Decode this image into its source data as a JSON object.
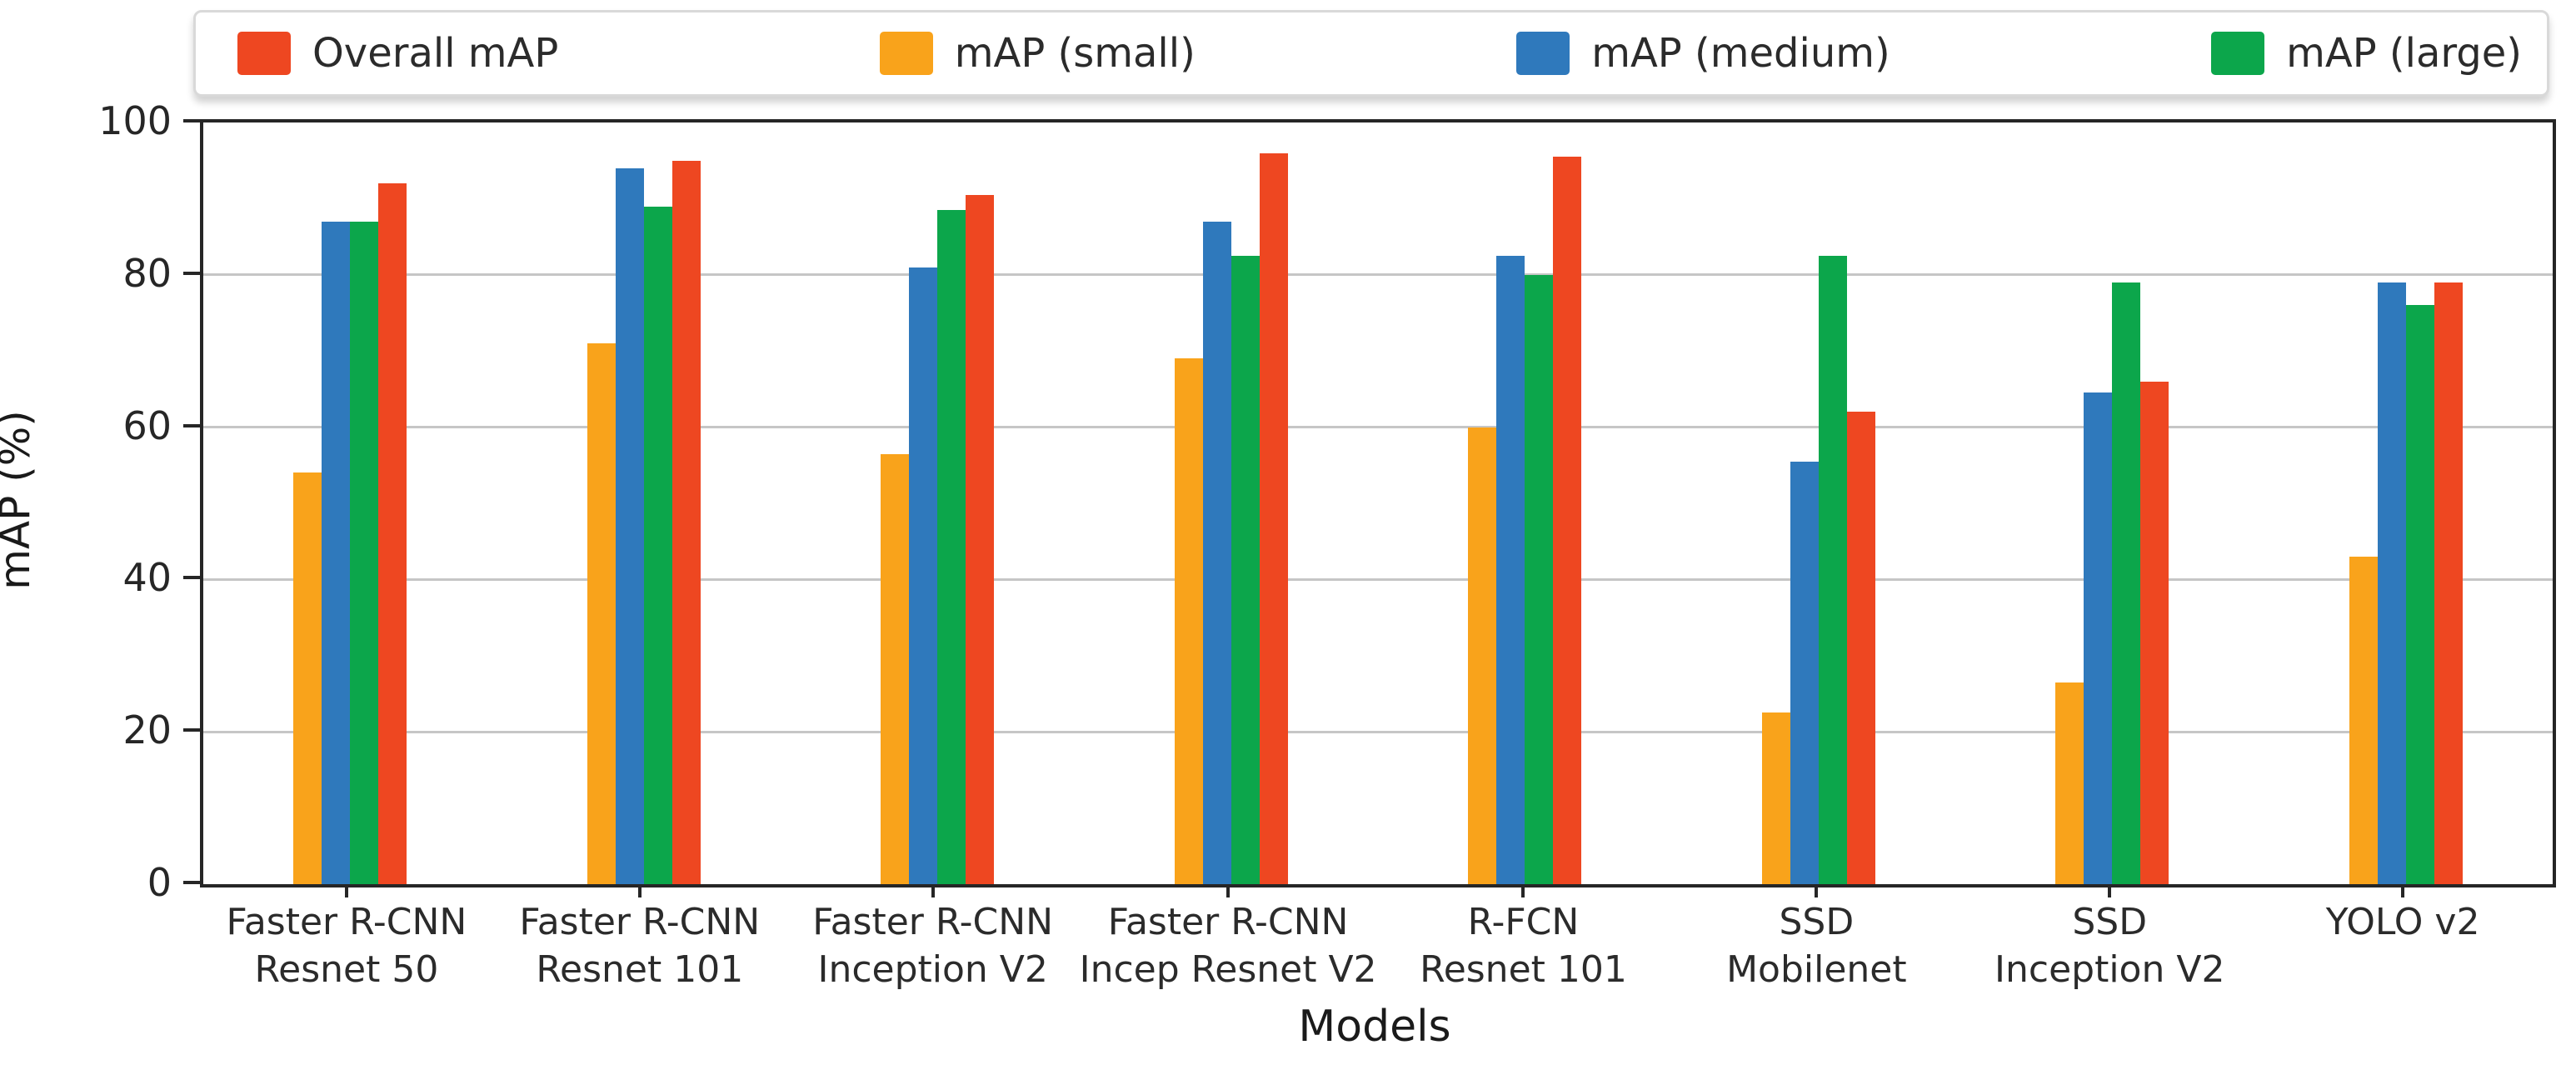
{
  "chart_data": {
    "type": "bar",
    "title": "",
    "xlabel": "Models",
    "ylabel": "mAP (%)",
    "ylim": [
      0,
      100
    ],
    "yticks": [
      0,
      20,
      40,
      60,
      80,
      100
    ],
    "grid": true,
    "legend_position": "top",
    "colors": {
      "overall": "#ee4721",
      "small": "#f9a31b",
      "medium": "#2f79bc",
      "large": "#0ca64b",
      "gridline": "#c6c6c6",
      "spine": "#262626"
    },
    "legend": [
      {
        "name": "Overall mAP",
        "color": "#ee4721"
      },
      {
        "name": "mAP (small)",
        "color": "#f9a31b"
      },
      {
        "name": "mAP (medium)",
        "color": "#2f79bc"
      },
      {
        "name": "mAP (large)",
        "color": "#0ca64b"
      }
    ],
    "categories": [
      "Faster R-CNN Resnet 50",
      "Faster R-CNN Resnet 101",
      "Faster R-CNN Inception V2",
      "Faster R-CNN Incep Resnet V2",
      "R-FCN Resnet 101",
      "SSD Mobilenet",
      "SSD Inception V2",
      "YOLO v2"
    ],
    "category_label_lines": [
      [
        "Faster R-CNN",
        "Resnet 50"
      ],
      [
        "Faster R-CNN",
        "Resnet 101"
      ],
      [
        "Faster R-CNN",
        "Inception V2"
      ],
      [
        "Faster R-CNN",
        "Incep Resnet V2"
      ],
      [
        "R-FCN",
        "Resnet 101"
      ],
      [
        "SSD",
        "Mobilenet"
      ],
      [
        "SSD",
        "Inception V2"
      ],
      [
        "YOLO v2"
      ]
    ],
    "series": [
      {
        "name": "mAP (small)",
        "color": "#f9a31b",
        "values": [
          54,
          71,
          56.5,
          69,
          60,
          22.5,
          26.5,
          43
        ]
      },
      {
        "name": "mAP (medium)",
        "color": "#2f79bc",
        "values": [
          87,
          94,
          81,
          87,
          82.5,
          55.5,
          64.5,
          79
        ]
      },
      {
        "name": "mAP (large)",
        "color": "#0ca64b",
        "values": [
          87,
          89,
          88.5,
          82.5,
          80,
          82.5,
          79,
          76
        ]
      },
      {
        "name": "Overall mAP",
        "color": "#ee4721",
        "values": [
          92,
          95,
          90.5,
          96,
          95.5,
          62,
          66,
          79
        ]
      }
    ]
  }
}
